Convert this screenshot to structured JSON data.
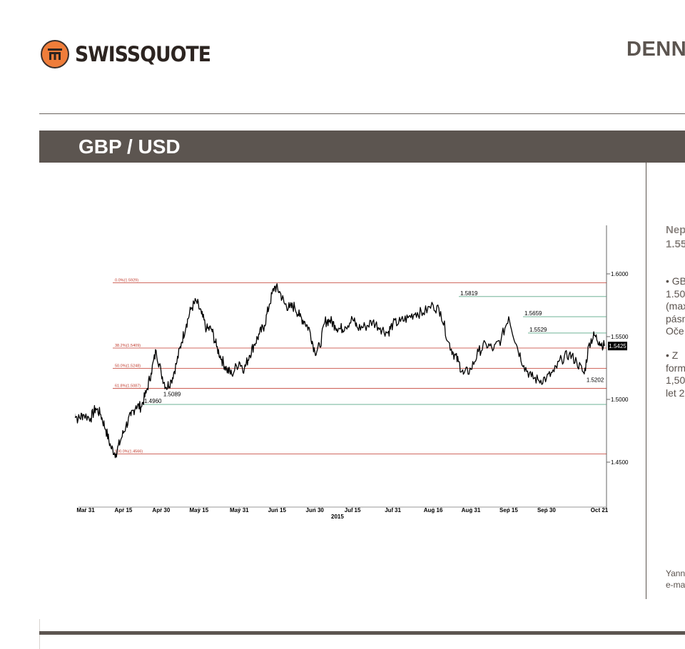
{
  "header": {
    "brand": "SWISSQUOTE",
    "title": "DENN",
    "section_title": "GBP / USD"
  },
  "sidebar": {
    "heading": [
      "Nep",
      "1.55"
    ],
    "bullet1": [
      "• GB",
      "1.50",
      "(max",
      "pásm",
      "Oče"
    ],
    "bullet2": [
      "•  Z",
      "form",
      "1,50",
      "let 2"
    ],
    "footer": [
      "Yann",
      "e-ma"
    ]
  },
  "colors": {
    "band": "#5c5550",
    "logo_orange": "#ef7d3a",
    "fib_line": "#c0392b",
    "support_line": "#5aa887",
    "price_series": "#000000"
  },
  "chart_data": {
    "type": "line",
    "title": "",
    "xlabel": "2015",
    "ylabel": "",
    "ylim": [
      1.4185,
      1.6415
    ],
    "y_axis_ticks": [
      "1.6000",
      "1.5500",
      "1.5000",
      "1.4500"
    ],
    "x_tick_labels": [
      "Mar 31",
      "Apr 15",
      "Apr 30",
      "May 15",
      "May 31",
      "Jun 15",
      "Jun 30",
      "Jul 15",
      "Jul 31",
      "Aug 16",
      "Aug 31",
      "Sep 15",
      "Sep 30",
      "Oct 21"
    ],
    "x_year_label": "2015",
    "last_value_label": "1.5425",
    "series": [
      {
        "name": "",
        "x": [
          "2015-03-26",
          "2015-03-28",
          "2015-03-30",
          "2015-04-02",
          "2015-04-04",
          "2015-04-06",
          "2015-04-08",
          "2015-04-10",
          "2015-04-12",
          "2015-04-14",
          "2015-04-16",
          "2015-04-18",
          "2015-04-20",
          "2015-04-22",
          "2015-04-24",
          "2015-04-26",
          "2015-04-28",
          "2015-04-30",
          "2015-05-02",
          "2015-05-04",
          "2015-05-06",
          "2015-05-08",
          "2015-05-10",
          "2015-05-12",
          "2015-05-14",
          "2015-05-16",
          "2015-05-18",
          "2015-05-20",
          "2015-05-22",
          "2015-05-24",
          "2015-05-26",
          "2015-05-28",
          "2015-05-31",
          "2015-06-02",
          "2015-06-04",
          "2015-06-06",
          "2015-06-08",
          "2015-06-10",
          "2015-06-12",
          "2015-06-14",
          "2015-06-16",
          "2015-06-18",
          "2015-06-20",
          "2015-06-22",
          "2015-06-24",
          "2015-06-26",
          "2015-06-28",
          "2015-06-30",
          "2015-07-02",
          "2015-07-04",
          "2015-07-06",
          "2015-07-08",
          "2015-07-10",
          "2015-07-12",
          "2015-07-15",
          "2015-07-17",
          "2015-07-20",
          "2015-07-23",
          "2015-07-26",
          "2015-07-29",
          "2015-07-31",
          "2015-08-03",
          "2015-08-06",
          "2015-08-09",
          "2015-08-12",
          "2015-08-16",
          "2015-08-19",
          "2015-08-22",
          "2015-08-24",
          "2015-08-26",
          "2015-08-28",
          "2015-08-31",
          "2015-09-03",
          "2015-09-06",
          "2015-09-09",
          "2015-09-12",
          "2015-09-15",
          "2015-09-18",
          "2015-09-21",
          "2015-09-24",
          "2015-09-27",
          "2015-09-30",
          "2015-10-03",
          "2015-10-06",
          "2015-10-09",
          "2015-10-12",
          "2015-10-15",
          "2015-10-17",
          "2015-10-19",
          "2015-10-21",
          "2015-10-23"
        ],
        "values": [
          1.492,
          1.484,
          1.488,
          1.485,
          1.493,
          1.488,
          1.476,
          1.462,
          1.4566,
          1.468,
          1.479,
          1.487,
          1.495,
          1.494,
          1.505,
          1.521,
          1.539,
          1.521,
          1.5095,
          1.515,
          1.528,
          1.545,
          1.56,
          1.573,
          1.578,
          1.568,
          1.556,
          1.556,
          1.542,
          1.532,
          1.524,
          1.52,
          1.53,
          1.524,
          1.535,
          1.544,
          1.552,
          1.559,
          1.576,
          1.59,
          1.586,
          1.576,
          1.573,
          1.574,
          1.566,
          1.562,
          1.555,
          1.538,
          1.542,
          1.562,
          1.563,
          1.559,
          1.556,
          1.558,
          1.564,
          1.557,
          1.558,
          1.562,
          1.557,
          1.553,
          1.56,
          1.562,
          1.565,
          1.569,
          1.569,
          1.575,
          1.57,
          1.546,
          1.537,
          1.53,
          1.52,
          1.524,
          1.538,
          1.544,
          1.54,
          1.548,
          1.5659,
          1.544,
          1.527,
          1.518,
          1.515,
          1.517,
          1.522,
          1.532,
          1.536,
          1.53,
          1.5202,
          1.545,
          1.551,
          1.546,
          1.5425
        ]
      }
    ],
    "fibonacci_levels": [
      {
        "label": "0.0%(1.5929)",
        "value": 1.5929
      },
      {
        "label": "38.2%(1.5409)",
        "value": 1.5409
      },
      {
        "label": "50.0%(1.5248)",
        "value": 1.5248
      },
      {
        "label": "61.8%(1.5087)",
        "value": 1.5087
      },
      {
        "label": "100.0%(1.4566)",
        "value": 1.4566
      }
    ],
    "support_resistance": [
      {
        "label": "1.5819",
        "value": 1.5819
      },
      {
        "label": "1.5659",
        "value": 1.5659
      },
      {
        "label": "1.5529",
        "value": 1.5529
      },
      {
        "label": "1.4960",
        "value": 1.496
      }
    ],
    "point_annotations": [
      {
        "label": "1.5089",
        "x": "2015-04-30",
        "value": 1.5089
      },
      {
        "label": "1.5202",
        "x": "2015-10-15",
        "value": 1.5202
      }
    ],
    "grid": false
  }
}
